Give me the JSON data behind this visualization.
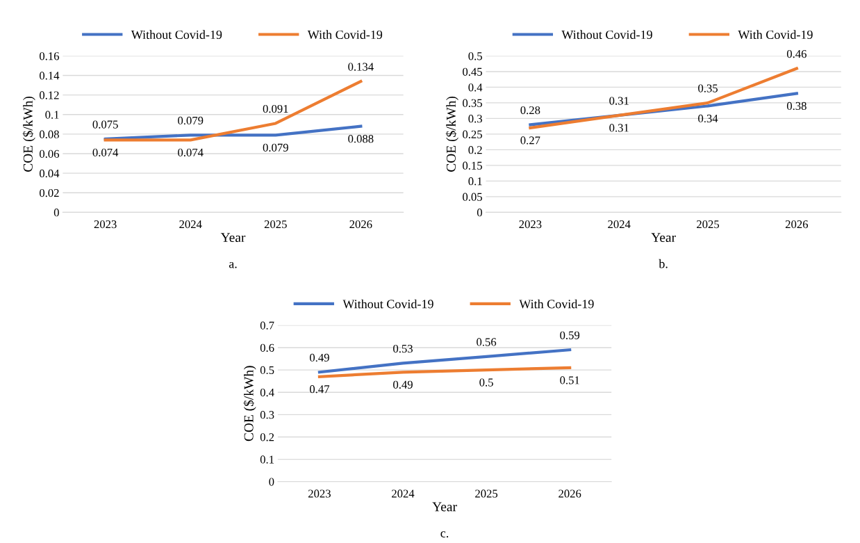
{
  "chart_data": [
    {
      "type": "line",
      "categories": [
        "2023",
        "2024",
        "2025",
        "2026"
      ],
      "xlabel": "Year",
      "ylabel": "COE ($/kWh)",
      "ylim": [
        0,
        0.16
      ],
      "yticks": [
        0,
        0.02,
        0.04,
        0.06,
        0.08,
        0.1,
        0.12,
        0.14,
        0.16
      ],
      "grid": "y",
      "legend": "top",
      "data_labels": true,
      "annotations": [
        "a."
      ],
      "series": [
        {
          "name": "Without Covid-19",
          "color": "#4472c4",
          "values": [
            0.075,
            0.079,
            0.079,
            0.088
          ]
        },
        {
          "name": "With Covid-19",
          "color": "#ed7d31",
          "values": [
            0.074,
            0.074,
            0.091,
            0.134
          ]
        }
      ]
    },
    {
      "type": "line",
      "categories": [
        "2023",
        "2024",
        "2025",
        "2026"
      ],
      "xlabel": "Year",
      "ylabel": "COE ($/kWh)",
      "ylim": [
        0,
        0.5
      ],
      "yticks": [
        0,
        0.05,
        0.1,
        0.15,
        0.2,
        0.25,
        0.3,
        0.35,
        0.4,
        0.45,
        0.5
      ],
      "grid": "y",
      "legend": "top",
      "data_labels": true,
      "annotations": [
        "b."
      ],
      "series": [
        {
          "name": "Without Covid-19",
          "color": "#4472c4",
          "values": [
            0.28,
            0.31,
            0.34,
            0.38
          ]
        },
        {
          "name": "With Covid-19",
          "color": "#ed7d31",
          "values": [
            0.27,
            0.31,
            0.35,
            0.46
          ]
        }
      ]
    },
    {
      "type": "line",
      "categories": [
        "2023",
        "2024",
        "2025",
        "2026"
      ],
      "xlabel": "Year",
      "ylabel": "COE ($/kWh)",
      "ylim": [
        0,
        0.7
      ],
      "yticks": [
        0,
        0.1,
        0.2,
        0.3,
        0.4,
        0.5,
        0.6,
        0.7
      ],
      "grid": "y",
      "legend": "top",
      "data_labels": true,
      "annotations": [
        "c."
      ],
      "series": [
        {
          "name": "Without Covid-19",
          "color": "#4472c4",
          "values": [
            0.49,
            0.53,
            0.56,
            0.59
          ]
        },
        {
          "name": "With Covid-19",
          "color": "#ed7d31",
          "values": [
            0.47,
            0.49,
            0.5,
            0.51
          ]
        }
      ]
    }
  ]
}
